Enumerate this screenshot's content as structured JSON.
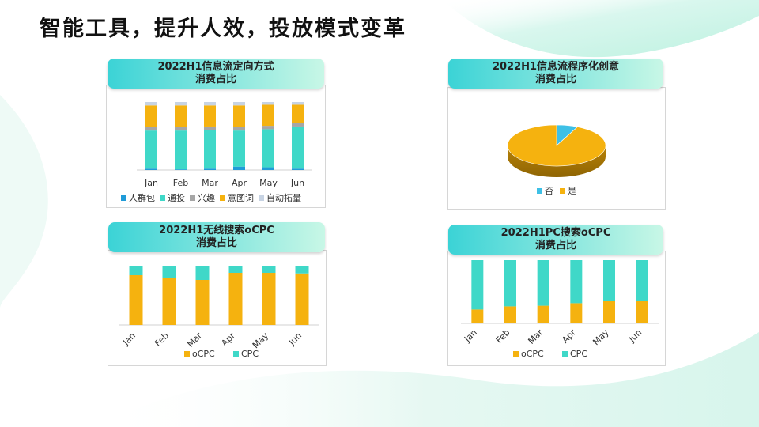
{
  "page": {
    "title": "智能工具，提升人效，投放模式变革"
  },
  "colors": {
    "bg_top": "#d9f7ee",
    "bg_bottom": "#e6f8f2",
    "header_start": "#3bd3d6",
    "header_end": "#c8f7e6"
  },
  "chart_data": [
    {
      "type": "bar",
      "stacked": true,
      "title_line1": "2022H1信息流定向方式",
      "title_line2": "消费占比",
      "categories": [
        "Jan",
        "Feb",
        "Mar",
        "Apr",
        "May",
        "Jun"
      ],
      "ylim": [
        0,
        1
      ],
      "legend_position": "bottom",
      "series": [
        {
          "name": "人群包",
          "color": "#1f9bd8",
          "values": [
            0.02,
            0.01,
            0.02,
            0.05,
            0.04,
            0.02
          ]
        },
        {
          "name": "通投",
          "color": "#3fd8c8",
          "values": [
            0.56,
            0.57,
            0.57,
            0.53,
            0.56,
            0.62
          ]
        },
        {
          "name": "兴趣",
          "color": "#a6a6a6",
          "values": [
            0.05,
            0.05,
            0.05,
            0.05,
            0.05,
            0.05
          ]
        },
        {
          "name": "意图词",
          "color": "#f5b20f",
          "values": [
            0.32,
            0.32,
            0.31,
            0.32,
            0.31,
            0.27
          ]
        },
        {
          "name": "自动拓量",
          "color": "#c7d3e3",
          "values": [
            0.05,
            0.05,
            0.05,
            0.05,
            0.04,
            0.04
          ]
        }
      ]
    },
    {
      "type": "pie",
      "title_line1": "2022H1信息流程序化创意",
      "title_line2": "消费占比",
      "legend_position": "bottom",
      "slices": [
        {
          "name": "否",
          "color": "#3ec0e6",
          "value": 0.07
        },
        {
          "name": "是",
          "color": "#f5b20f",
          "value": 0.93
        }
      ]
    },
    {
      "type": "bar",
      "stacked": true,
      "title_line1": "2022H1无线搜索oCPC",
      "title_line2": "消费占比",
      "categories": [
        "Jan",
        "Feb",
        "Mar",
        "Apr",
        "May",
        "Jun"
      ],
      "ylim": [
        0,
        1
      ],
      "legend_position": "bottom",
      "series": [
        {
          "name": "oCPC",
          "color": "#f5b20f",
          "values": [
            0.84,
            0.79,
            0.76,
            0.88,
            0.88,
            0.87
          ]
        },
        {
          "name": "CPC",
          "color": "#3fd8c8",
          "values": [
            0.16,
            0.21,
            0.24,
            0.12,
            0.12,
            0.13
          ]
        }
      ]
    },
    {
      "type": "bar",
      "stacked": true,
      "title_line1": "2022H1PC搜索oCPC",
      "title_line2": "消费占比",
      "categories": [
        "Jan",
        "Feb",
        "Mar",
        "Apr",
        "May",
        "Jun"
      ],
      "ylim": [
        0,
        1
      ],
      "legend_position": "bottom",
      "series": [
        {
          "name": "oCPC",
          "color": "#f5b20f",
          "values": [
            0.22,
            0.27,
            0.28,
            0.32,
            0.35,
            0.35
          ]
        },
        {
          "name": "CPC",
          "color": "#3fd8c8",
          "values": [
            0.78,
            0.73,
            0.72,
            0.68,
            0.65,
            0.65
          ]
        }
      ]
    }
  ]
}
